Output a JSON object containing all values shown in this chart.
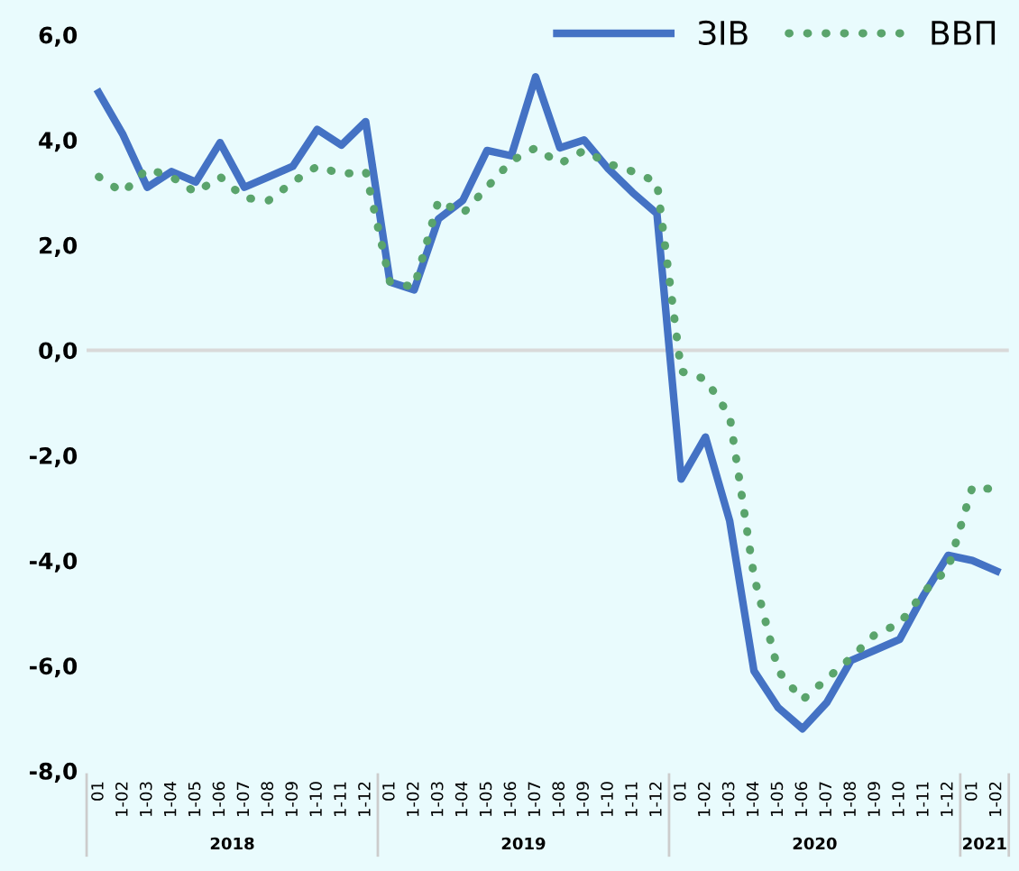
{
  "chart_data": {
    "type": "line",
    "categories": [
      "01",
      "1-02",
      "1-03",
      "1-04",
      "1-05",
      "1-06",
      "1-07",
      "1-08",
      "1-09",
      "1-10",
      "1-11",
      "1-12",
      "01",
      "1-02",
      "1-03",
      "1-04",
      "1-05",
      "1-06",
      "1-07",
      "1-08",
      "1-09",
      "1-10",
      "1-11",
      "1-12",
      "01",
      "1-02",
      "1-03",
      "1-04",
      "1-05",
      "1-06",
      "1-07",
      "1-08",
      "1-09",
      "1-10",
      "1-11",
      "1-12",
      "01",
      "1-02"
    ],
    "series": [
      {
        "name": "ЗІВ",
        "color": "#4472c4",
        "line_style": "solid",
        "values": [
          4.9,
          4.1,
          3.1,
          3.4,
          3.2,
          3.95,
          3.1,
          3.3,
          3.5,
          4.2,
          3.9,
          4.35,
          1.3,
          1.15,
          2.5,
          2.85,
          3.8,
          3.7,
          5.2,
          3.85,
          4.0,
          3.45,
          3.0,
          2.6,
          -2.45,
          -1.65,
          -3.25,
          -6.1,
          -6.8,
          -7.2,
          -6.7,
          -5.9,
          -5.7,
          -5.5,
          -4.65,
          -3.9,
          -4.0,
          -4.2
        ]
      },
      {
        "name": "ВВП",
        "color": "#5aa46c",
        "line_style": "dotted",
        "values": [
          3.3,
          3.0,
          3.45,
          3.3,
          3.0,
          3.3,
          2.9,
          2.85,
          3.2,
          3.5,
          3.35,
          3.4,
          1.3,
          1.2,
          2.85,
          2.6,
          3.1,
          3.6,
          3.85,
          3.55,
          3.8,
          3.55,
          3.4,
          3.2,
          -0.4,
          -0.55,
          -1.25,
          -4.3,
          -6.1,
          -6.65,
          -6.25,
          -5.85,
          -5.4,
          -5.2,
          -4.6,
          -4.15,
          -2.6,
          -2.65
        ]
      }
    ],
    "annotations": [
      "2018",
      "2019",
      "2020",
      "2021"
    ],
    "ylim": [
      -8,
      6
    ],
    "yticks": [
      {
        "value": -8,
        "label": "-8,0"
      },
      {
        "value": -6,
        "label": "-6,0"
      },
      {
        "value": -4,
        "label": "-4,0"
      },
      {
        "value": -2,
        "label": "-2,0"
      },
      {
        "value": 0,
        "label": "0,0"
      },
      {
        "value": 2,
        "label": "2,0"
      },
      {
        "value": 4,
        "label": "4,0"
      },
      {
        "value": 6,
        "label": "6,0"
      }
    ],
    "ref_lines": [
      {
        "axis": "y",
        "value": 0,
        "color": "#d9d9d9"
      }
    ],
    "grid": false,
    "legend": "top right",
    "marker": "none"
  }
}
